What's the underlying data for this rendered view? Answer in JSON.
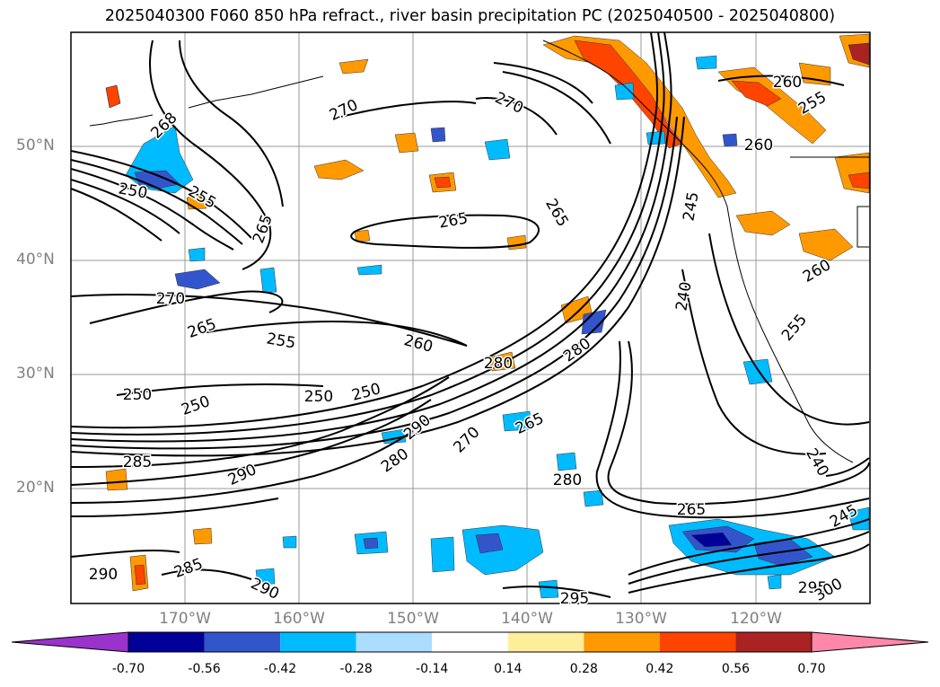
{
  "title": "2025040300 F060 850 hPa refract., river basin precipitation PC (2025040500 - 2025040800)",
  "lat_labels": [
    "50°N",
    "40°N",
    "30°N",
    "20°N"
  ],
  "lon_labels": [
    "170°W",
    "160°W",
    "150°W",
    "140°W",
    "130°W",
    "120°W"
  ],
  "contour_labels": [
    "268",
    "250",
    "255",
    "265",
    "270",
    "270",
    "265",
    "265",
    "270",
    "265",
    "255",
    "260",
    "250",
    "250",
    "250",
    "250",
    "280",
    "280",
    "285",
    "290",
    "290",
    "280",
    "270",
    "265",
    "280",
    "240",
    "245",
    "240",
    "290",
    "285",
    "290",
    "295",
    "265",
    "295",
    "300",
    "245",
    "255",
    "260",
    "260",
    "255",
    "260"
  ],
  "colorbar": {
    "levels": [
      "-0.70",
      "-0.56",
      "-0.42",
      "-0.28",
      "-0.14",
      "0.14",
      "0.28",
      "0.42",
      "0.56",
      "0.70"
    ],
    "colors": [
      "#9933cc",
      "#000099",
      "#3355cc",
      "#00bbff",
      "#aaddff",
      "#ffffff",
      "#ffee99",
      "#ff9900",
      "#ff4400",
      "#aa2222",
      "#ff88aa"
    ]
  }
}
